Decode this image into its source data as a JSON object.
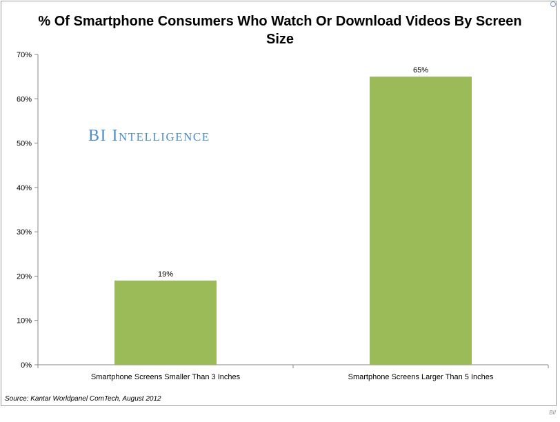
{
  "chart_data": {
    "type": "bar",
    "title": "% Of Smartphone Consumers Who Watch Or Download Videos By Screen Size",
    "categories": [
      "Smartphone Screens Smaller Than 3 Inches",
      "Smartphone Screens Larger Than 5 Inches"
    ],
    "values": [
      19,
      65
    ],
    "data_labels": [
      "19%",
      "65%"
    ],
    "yticks": [
      "0%",
      "10%",
      "20%",
      "30%",
      "40%",
      "50%",
      "60%",
      "70%"
    ],
    "ylim": [
      0,
      70
    ],
    "grid": false,
    "legend": "none",
    "bar_color": "#9bbb59"
  },
  "watermark": "BI Intelligence",
  "source": "Source: Kantar Worldpanel ComTech, August 2012",
  "corner_mark": "BII"
}
